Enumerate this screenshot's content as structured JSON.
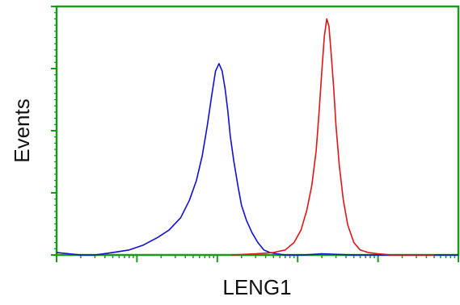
{
  "chart_data": {
    "type": "line",
    "title": "",
    "xlabel": "LENG1",
    "ylabel": "Events",
    "x_scale": "log",
    "xlim": [
      1,
      100000
    ],
    "ylim": [
      0,
      1.0
    ],
    "grid": false,
    "legend": "none",
    "colors": {
      "axis": "#1a9a1a",
      "series": [
        "#1010d0",
        "#e01515"
      ]
    },
    "series": [
      {
        "name": "",
        "color": "#1010d0",
        "x": [
          1,
          2,
          3,
          5,
          8,
          12,
          18,
          25,
          35,
          45,
          55,
          65,
          75,
          85,
          95,
          105,
          115,
          125,
          135,
          145,
          160,
          180,
          200,
          230,
          270,
          320,
          380,
          450,
          550,
          700,
          900,
          1200,
          2000,
          5000,
          20000,
          100000
        ],
        "y": [
          0.01,
          0.0,
          0.0,
          0.01,
          0.02,
          0.04,
          0.07,
          0.1,
          0.15,
          0.22,
          0.3,
          0.4,
          0.52,
          0.64,
          0.74,
          0.77,
          0.74,
          0.67,
          0.58,
          0.48,
          0.38,
          0.28,
          0.2,
          0.14,
          0.09,
          0.05,
          0.02,
          0.01,
          0.005,
          0.0,
          0.0,
          0.0,
          0.005,
          0.0,
          0.0,
          0.0
        ]
      },
      {
        "name": "",
        "color": "#e01515",
        "x": [
          150,
          300,
          500,
          700,
          900,
          1100,
          1300,
          1500,
          1700,
          1850,
          2000,
          2150,
          2300,
          2450,
          2600,
          2800,
          3000,
          3300,
          3700,
          4200,
          5000,
          6000,
          7500,
          10000,
          15000,
          25000,
          50000
        ],
        "y": [
          0.0,
          0.005,
          0.01,
          0.02,
          0.05,
          0.1,
          0.18,
          0.28,
          0.42,
          0.58,
          0.74,
          0.88,
          0.95,
          0.92,
          0.82,
          0.68,
          0.52,
          0.36,
          0.22,
          0.12,
          0.05,
          0.02,
          0.01,
          0.005,
          0.0,
          0.0,
          0.0
        ]
      }
    ]
  }
}
